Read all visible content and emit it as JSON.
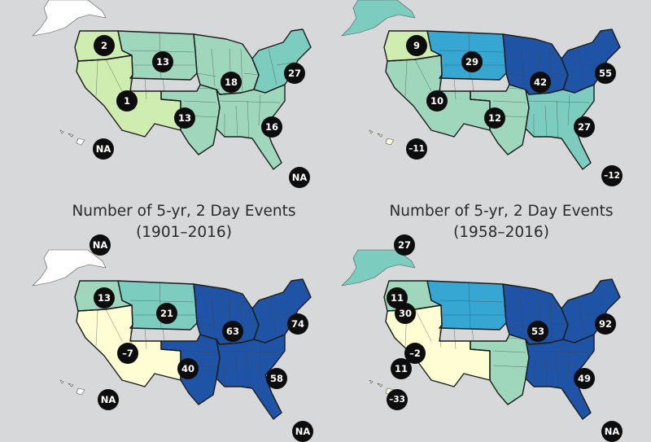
{
  "colors": {
    "background": "#d7d8da",
    "scale": {
      "pale_yellow": "#fefdd3",
      "light_green": "#cfedb0",
      "light_teal": "#9fd7bd",
      "teal": "#7dccc0",
      "mid_blue": "#36a6d3",
      "dark_blue": "#1f53a6",
      "white": "#ffffff"
    },
    "badge": "#0d0d0d"
  },
  "panels": [
    {
      "id": "top-left",
      "title_line1": "",
      "title_line2": "",
      "badges": {
        "alaska": "",
        "northwest": "2",
        "northern_great_plains": "13",
        "southwest": "1",
        "midwest": "18",
        "northeast": "27",
        "southern_great_plains": "13",
        "southeast": "16",
        "hawaii": "NA",
        "puerto_rico": "NA"
      },
      "region_colors": {
        "northwest": "light_green",
        "southwest": "light_green",
        "northern_great_plains": "light_teal",
        "southern_great_plains": "light_teal",
        "midwest": "light_teal",
        "southeast": "light_teal",
        "northeast": "teal",
        "alaska": "white",
        "hawaii": "white"
      }
    },
    {
      "id": "top-right",
      "title_line1": "",
      "title_line2": "",
      "badges": {
        "alaska": "",
        "northwest": "9",
        "northern_great_plains": "29",
        "southwest": "10",
        "midwest": "42",
        "northeast": "55",
        "southern_great_plains": "12",
        "southeast": "27",
        "hawaii": "–11",
        "puerto_rico": "–12"
      },
      "region_colors": {
        "northwest": "light_green",
        "southwest": "light_teal",
        "northern_great_plains": "mid_blue",
        "southern_great_plains": "light_teal",
        "midwest": "dark_blue",
        "southeast": "teal",
        "northeast": "dark_blue",
        "alaska": "teal",
        "hawaii": "pale_yellow"
      }
    },
    {
      "id": "bottom-left",
      "title_line1": "Number of  5-yr, 2 Day Events",
      "title_line2": "(1901–2016)",
      "badges": {
        "alaska": "NA",
        "northwest": "13",
        "northern_great_plains": "21",
        "southwest": "–7",
        "midwest": "63",
        "northeast": "74",
        "southern_great_plains": "40",
        "southeast": "58",
        "hawaii": "NA",
        "puerto_rico": "NA"
      },
      "region_colors": {
        "northwest": "light_teal",
        "southwest": "pale_yellow",
        "northern_great_plains": "teal",
        "southern_great_plains": "dark_blue",
        "midwest": "dark_blue",
        "southeast": "dark_blue",
        "northeast": "dark_blue",
        "alaska": "white",
        "hawaii": "white"
      }
    },
    {
      "id": "bottom-right",
      "title_line1": "Number of  5-yr, 2 Day Events",
      "title_line2": "(1958–2016)",
      "badges": {
        "alaska": "27",
        "northwest": "11",
        "northern_great_plains": "30",
        "southwest": "–2",
        "midwest": "53",
        "northeast": "92",
        "southern_great_plains": "11",
        "southeast": "49",
        "hawaii": "–33",
        "puerto_rico": "NA"
      },
      "region_colors": {
        "northwest": "light_teal",
        "southwest": "pale_yellow",
        "northern_great_plains": "mid_blue",
        "southern_great_plains": "light_teal",
        "midwest": "dark_blue",
        "southeast": "dark_blue",
        "northeast": "dark_blue",
        "alaska": "teal",
        "hawaii": "pale_yellow"
      }
    }
  ]
}
